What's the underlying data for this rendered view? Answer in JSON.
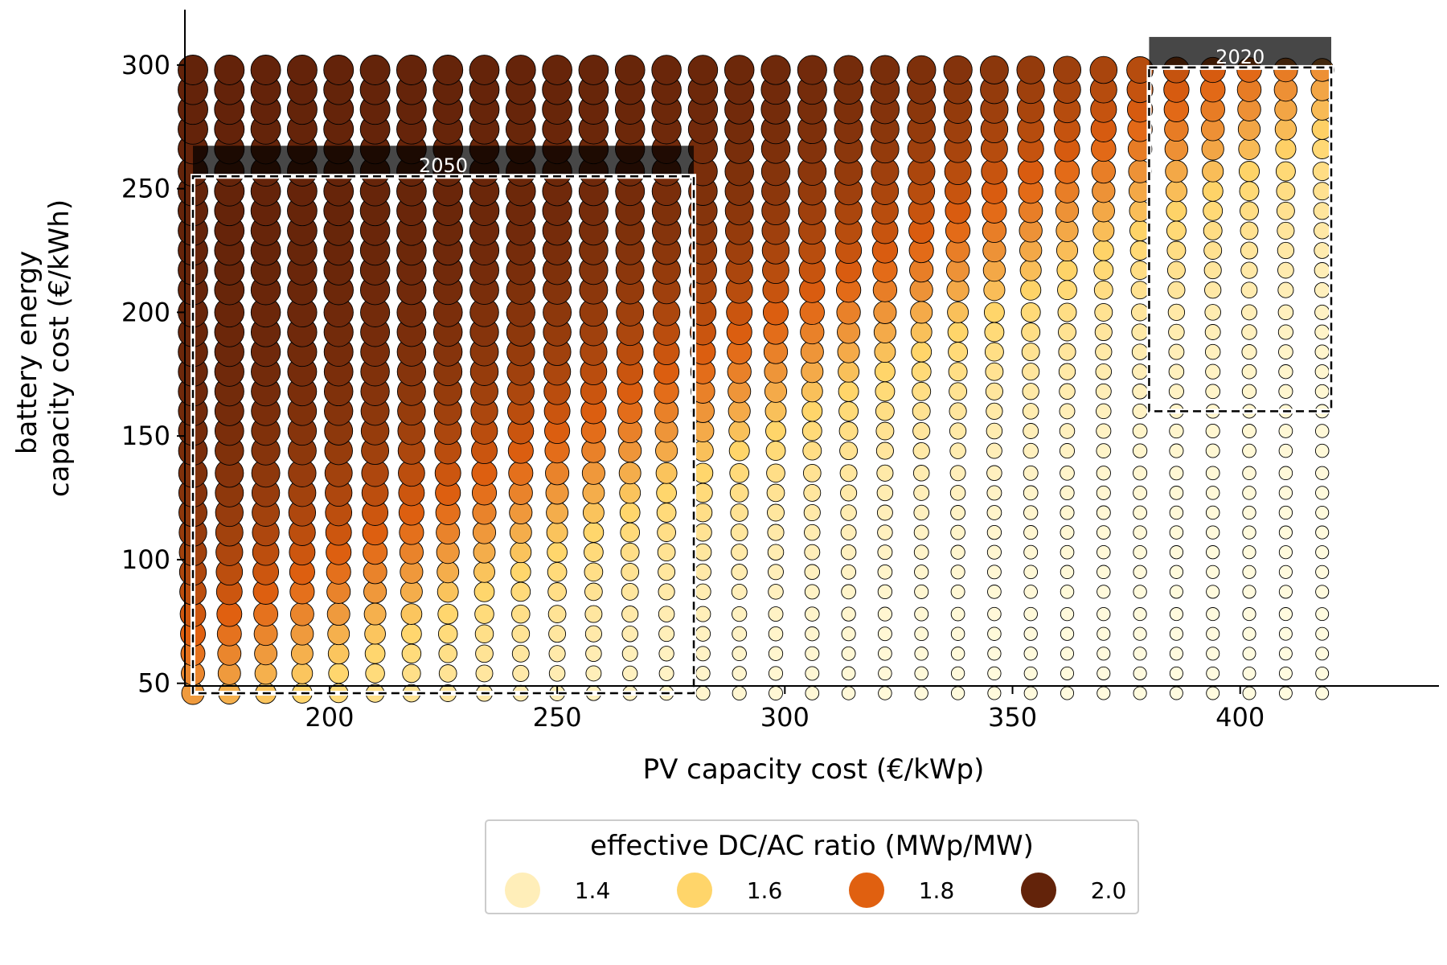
{
  "chart_data": {
    "type": "scatter",
    "xlabel": "PV capacity cost (€/kWp)",
    "ylabel_lines": [
      "battery energy",
      "capacity cost (€/kWh)"
    ],
    "xlim": [
      160,
      435
    ],
    "ylim": [
      33,
      326
    ],
    "xticks": [
      200,
      250,
      300,
      350,
      400
    ],
    "yticks": [
      50,
      100,
      150,
      200,
      250,
      300
    ],
    "grid": false,
    "x_values": [
      170,
      178,
      186,
      194,
      202,
      210,
      218,
      226,
      234,
      242,
      250,
      258,
      266,
      274,
      282,
      290,
      298,
      306,
      314,
      322,
      330,
      338,
      346,
      354,
      362,
      370,
      378,
      386,
      394,
      402,
      410,
      418
    ],
    "y_values": [
      46,
      54,
      62,
      70,
      78,
      87,
      95,
      103,
      111,
      119,
      127,
      135,
      144,
      152,
      160,
      168,
      176,
      184,
      192,
      200,
      209,
      217,
      225,
      233,
      241,
      249,
      257,
      266,
      274,
      282,
      290,
      298
    ],
    "color_encoding": "effective DC/AC ratio (MWp/MW)",
    "color_range": [
      1.3,
      2.0
    ],
    "colors": [
      "#fffbe0",
      "#ffd56a",
      "#e06010",
      "#63230a"
    ],
    "regions": [
      {
        "label": "2050",
        "x": [
          170,
          280
        ],
        "y": [
          46,
          255
        ]
      },
      {
        "label": "2020",
        "x": [
          380,
          420
        ],
        "y": [
          160,
          299
        ]
      }
    ],
    "legend": {
      "title": "effective DC/AC ratio (MWp/MW)",
      "position": "bottom-center",
      "entries": [
        {
          "label": "1.4",
          "value": 1.4
        },
        {
          "label": "1.6",
          "value": 1.6
        },
        {
          "label": "1.8",
          "value": 1.8
        },
        {
          "label": "2.0",
          "value": 2.0
        }
      ]
    }
  }
}
